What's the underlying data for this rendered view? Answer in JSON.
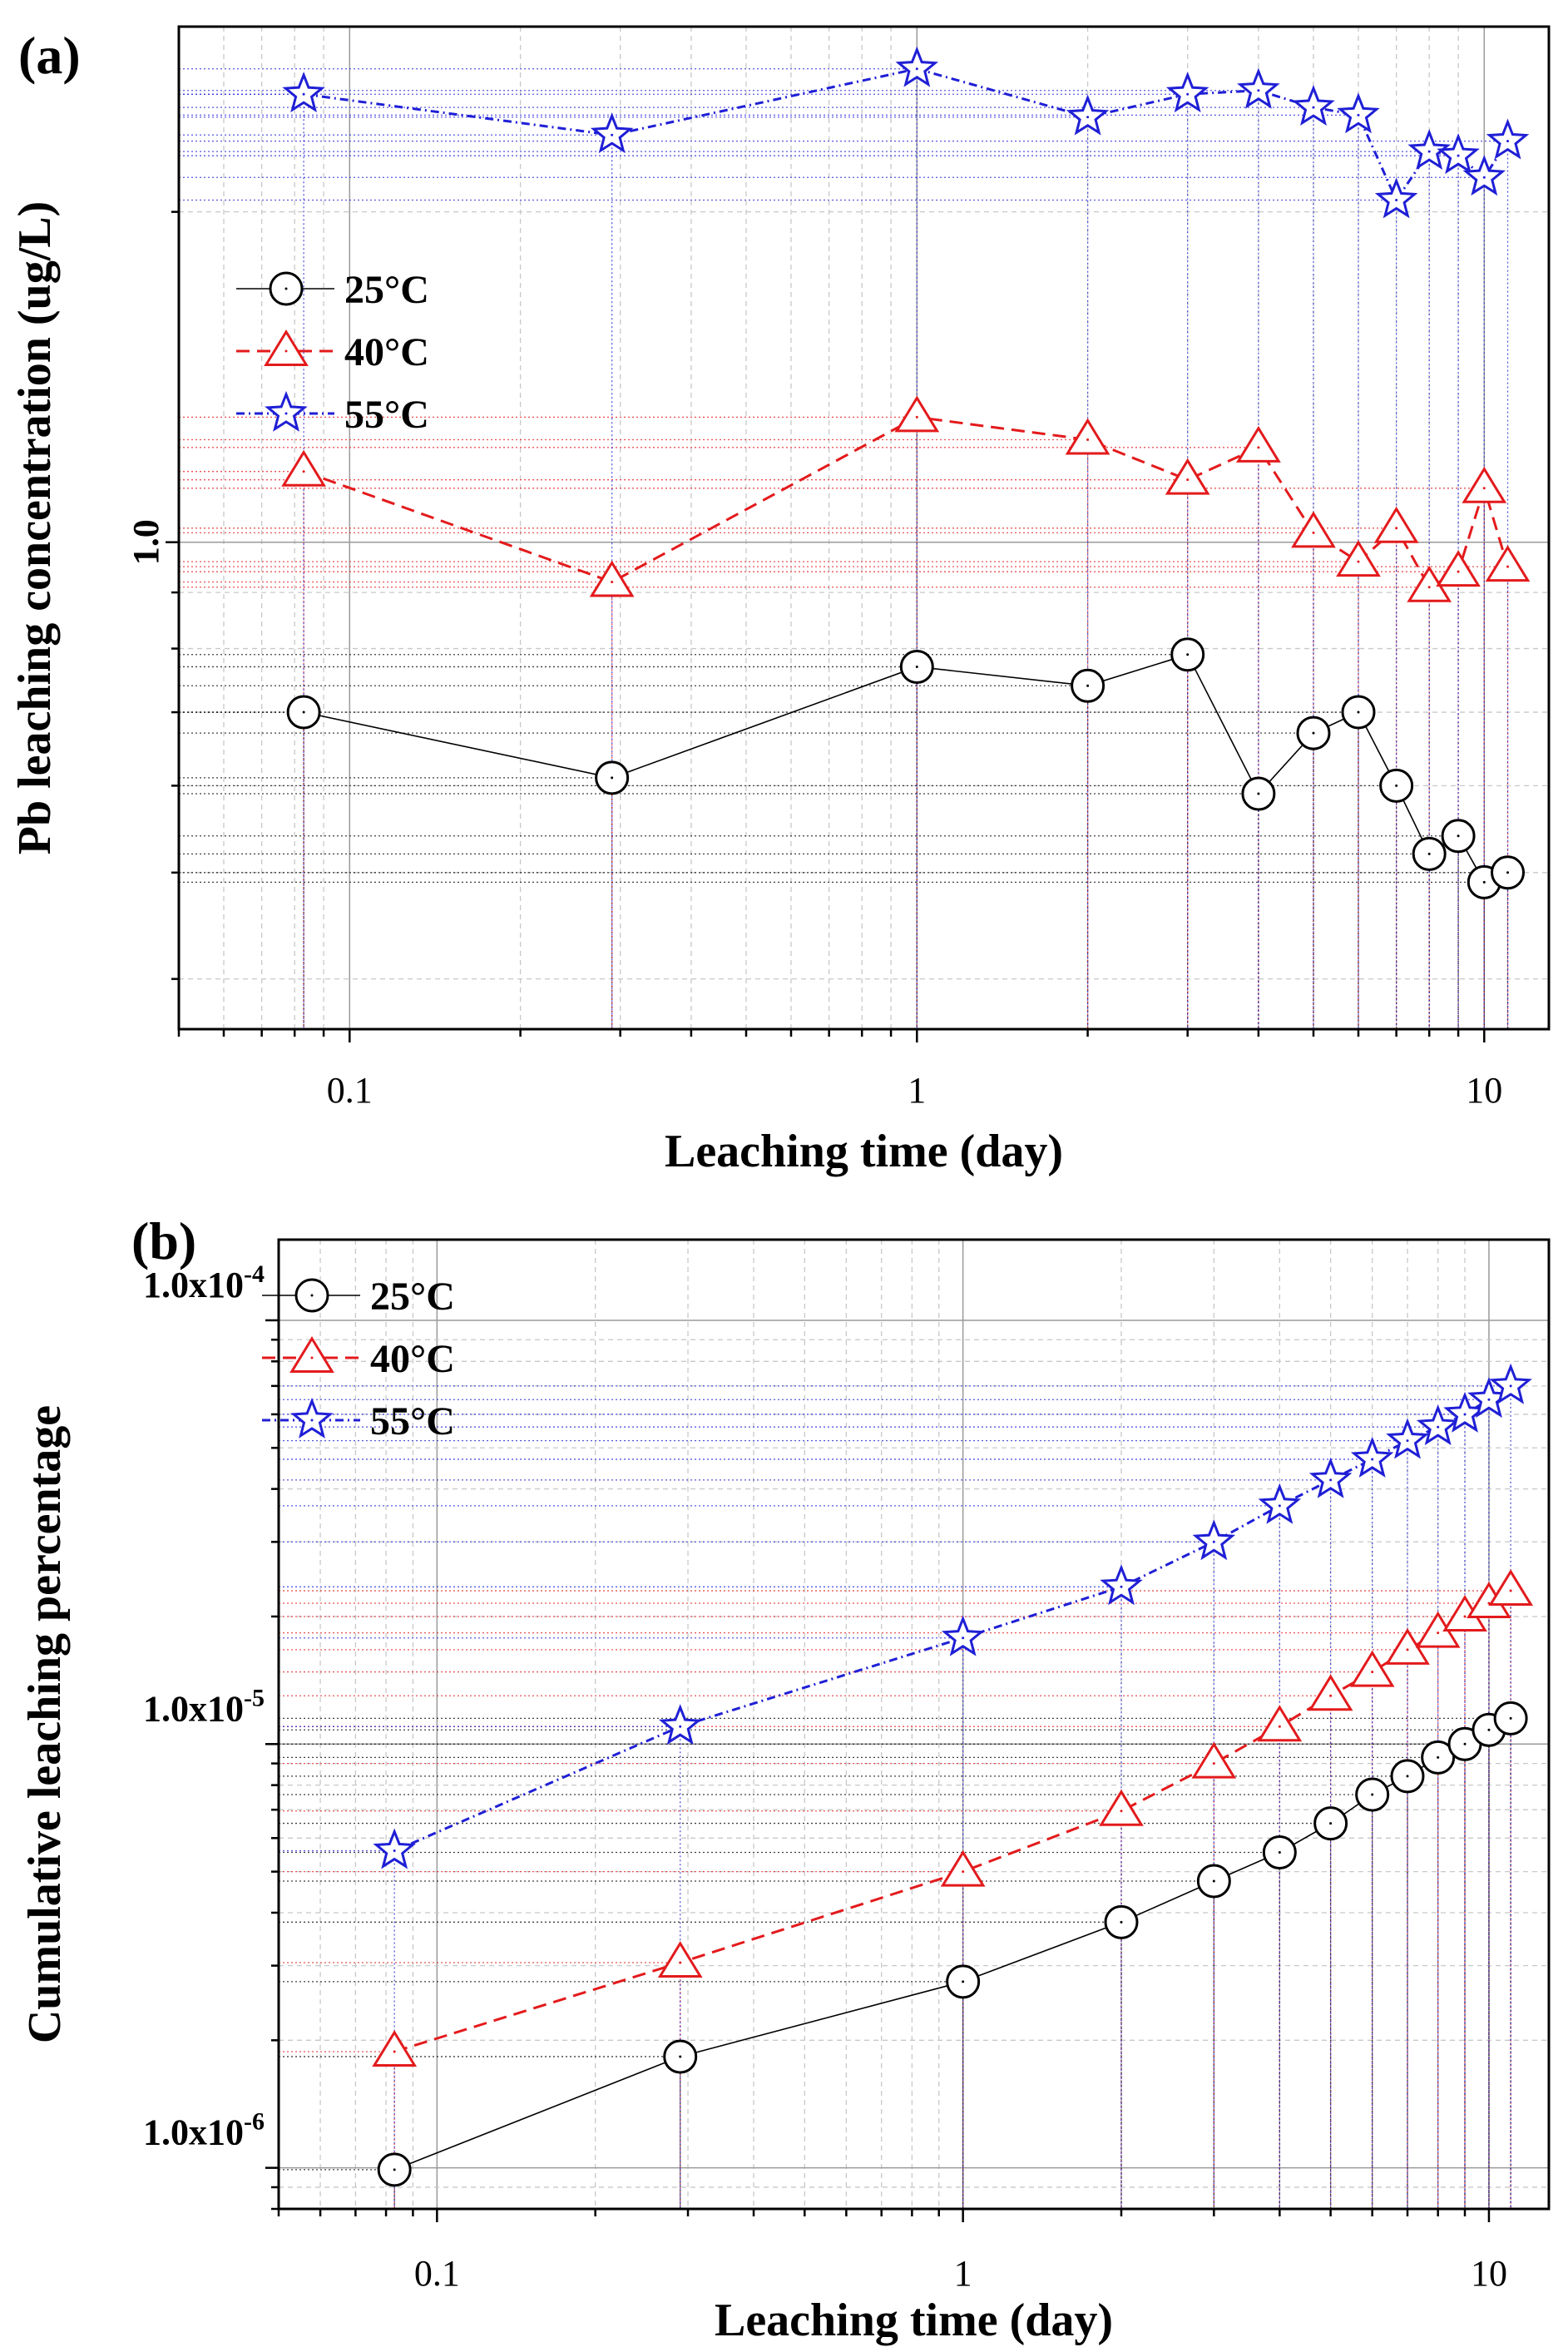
{
  "colors": {
    "s25": "#000000",
    "s40": "#e31a1c",
    "s55": "#1f1fd6",
    "grid": "#c8c8c8",
    "majorgrid": "#9a9a9a"
  },
  "chart_data": [
    {
      "id": "a",
      "panel_label": "(a)",
      "type": "line",
      "xscale": "log",
      "yscale": "log",
      "xlim": [
        0.05,
        13
      ],
      "ylim": [
        0.36,
        2.95
      ],
      "xlabel": "Leaching time (day)",
      "ylabel": "Pb leaching concentration (ug/L)",
      "xticks": [
        {
          "v": 0.1,
          "label": "0.1"
        },
        {
          "v": 1,
          "label": "1"
        },
        {
          "v": 10,
          "label": "10"
        }
      ],
      "yticks": [
        {
          "v": 1.0,
          "label": "1.0"
        }
      ],
      "legend_position": "upper-left",
      "x": [
        0.083,
        0.29,
        1,
        2,
        3,
        4,
        5,
        6,
        7,
        8,
        9,
        10,
        11
      ],
      "series": [
        {
          "name": "25°C",
          "marker": "circle",
          "dash": "",
          "values": [
            0.7,
            0.61,
            0.77,
            0.74,
            0.79,
            0.59,
            0.67,
            0.7,
            0.6,
            0.52,
            0.54,
            0.49,
            0.5
          ]
        },
        {
          "name": "40°C",
          "marker": "triangle",
          "dash": "16,9",
          "values": [
            1.16,
            0.92,
            1.3,
            1.24,
            1.14,
            1.22,
            1.02,
            0.96,
            1.03,
            0.91,
            0.94,
            1.12,
            0.95
          ]
        },
        {
          "name": "55°C",
          "marker": "star",
          "dash": "10,5,2,5",
          "values": [
            2.56,
            2.35,
            2.7,
            2.44,
            2.56,
            2.58,
            2.49,
            2.45,
            2.05,
            2.27,
            2.25,
            2.15,
            2.32
          ]
        }
      ]
    },
    {
      "id": "b",
      "panel_label": "(b)",
      "type": "line",
      "xscale": "log",
      "yscale": "log",
      "xlim": [
        0.05,
        13
      ],
      "ylim": [
        8e-07,
        0.000155
      ],
      "xlabel": "Leaching time (day)",
      "ylabel": "Cumulative leaching percentage",
      "xticks": [
        {
          "v": 0.1,
          "label": "0.1"
        },
        {
          "v": 1,
          "label": "1"
        },
        {
          "v": 10,
          "label": "10"
        }
      ],
      "yticks": [
        {
          "v": 1e-06,
          "base": "1.0x10",
          "exp": "-6"
        },
        {
          "v": 1e-05,
          "base": "1.0x10",
          "exp": "-5"
        },
        {
          "v": 0.0001,
          "base": "1.0x10",
          "exp": "-4"
        }
      ],
      "legend_position": "upper-left",
      "x": [
        0.083,
        0.29,
        1,
        2,
        3,
        4,
        5,
        6,
        7,
        8,
        9,
        10,
        11
      ],
      "series": [
        {
          "name": "25°C",
          "marker": "circle",
          "dash": "",
          "values": [
            9.9e-07,
            1.83e-06,
            2.75e-06,
            3.8e-06,
            4.75e-06,
            5.55e-06,
            6.5e-06,
            7.6e-06,
            8.4e-06,
            9.3e-06,
            1e-05,
            1.08e-05,
            1.15e-05
          ]
        },
        {
          "name": "40°C",
          "marker": "triangle",
          "dash": "16,9",
          "values": [
            1.88e-06,
            3.05e-06,
            5e-06,
            6.95e-06,
            9e-06,
            1.1e-05,
            1.3e-05,
            1.48e-05,
            1.67e-05,
            1.83e-05,
            2e-05,
            2.15e-05,
            2.3e-05
          ]
        },
        {
          "name": "55°C",
          "marker": "star",
          "dash": "10,5,2,5",
          "values": [
            5.6e-06,
            1.1e-05,
            1.78e-05,
            2.35e-05,
            3e-05,
            3.65e-05,
            4.2e-05,
            4.7e-05,
            5.2e-05,
            5.6e-05,
            6e-05,
            6.5e-05,
            7e-05
          ]
        }
      ]
    }
  ]
}
